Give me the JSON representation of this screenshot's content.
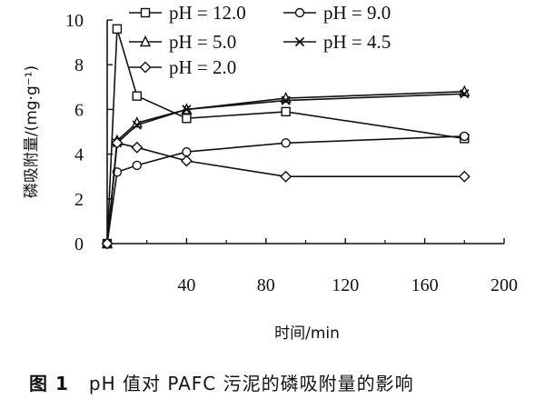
{
  "chart_data": {
    "type": "line",
    "xlabel": "时间/min",
    "ylabel": "磷吸附量/(mg·g⁻¹)",
    "xlim": [
      0,
      200
    ],
    "ylim": [
      0,
      10
    ],
    "xticks": [
      40,
      80,
      120,
      160,
      200
    ],
    "yticks": [
      0,
      2,
      4,
      6,
      8,
      10
    ],
    "grid": false,
    "legend_position": "top",
    "series": [
      {
        "name": "pH = 12.0",
        "marker": "square",
        "x": [
          0,
          5,
          15,
          40,
          90,
          180
        ],
        "y": [
          0,
          9.6,
          6.6,
          5.6,
          5.9,
          4.7
        ]
      },
      {
        "name": "pH = 9.0",
        "marker": "circle",
        "x": [
          0,
          5,
          15,
          40,
          90,
          180
        ],
        "y": [
          0,
          3.2,
          3.5,
          4.1,
          4.5,
          4.8
        ]
      },
      {
        "name": "pH = 5.0",
        "marker": "triangle",
        "x": [
          0,
          5,
          15,
          40,
          90,
          180
        ],
        "y": [
          0,
          4.6,
          5.4,
          6.0,
          6.5,
          6.8
        ]
      },
      {
        "name": "pH = 4.5",
        "marker": "x",
        "x": [
          0,
          5,
          15,
          40,
          90,
          180
        ],
        "y": [
          0,
          4.5,
          5.3,
          6.0,
          6.4,
          6.7
        ]
      },
      {
        "name": "pH = 2.0",
        "marker": "diamond",
        "x": [
          0,
          5,
          15,
          40,
          90,
          180
        ],
        "y": [
          0,
          4.5,
          4.3,
          3.7,
          3.0,
          3.0
        ]
      }
    ]
  },
  "caption": {
    "number": "图 1",
    "text": "pH 值对 PAFC 污泥的磷吸附量的影响"
  }
}
